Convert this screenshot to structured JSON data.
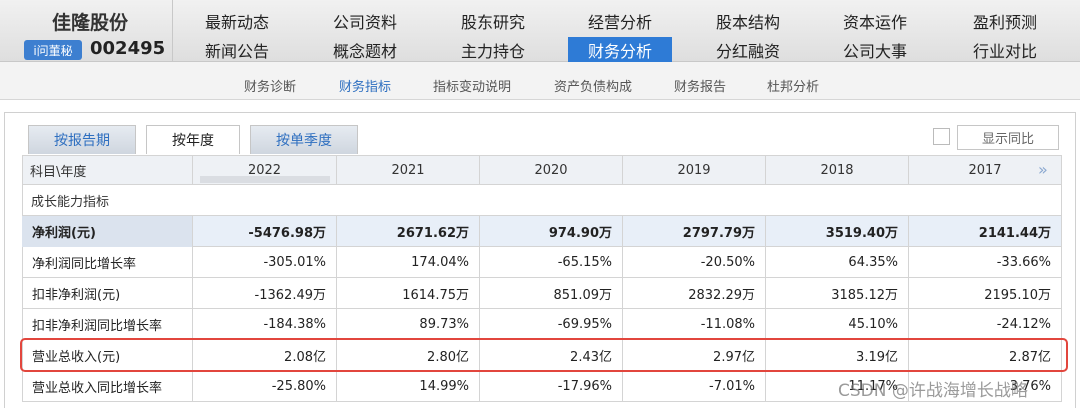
{
  "header": {
    "name": "佳隆股份",
    "badge": "i问董秘",
    "code": "002495"
  },
  "nav": {
    "rows": [
      [
        "最新动态",
        "公司资料",
        "股东研究",
        "经营分析",
        "股本结构",
        "资本运作",
        "盈利预测"
      ],
      [
        "新闻公告",
        "概念题材",
        "主力持仓",
        "财务分析",
        "分红融资",
        "公司大事",
        "行业对比"
      ]
    ],
    "active": [
      1,
      3
    ]
  },
  "subnav": {
    "items": [
      "财务诊断",
      "财务指标",
      "指标变动说明",
      "资产负债构成",
      "财务报告",
      "杜邦分析"
    ],
    "active": 1
  },
  "tabs": {
    "items": [
      "按报告期",
      "按年度",
      "按单季度"
    ],
    "active": 1
  },
  "toggle": {
    "label": "显示同比"
  },
  "table": {
    "columns": [
      "科目\\年度",
      "2022",
      "2021",
      "2020",
      "2019",
      "2018",
      "2017"
    ],
    "section": "成长能力指标",
    "rows": [
      [
        "净利润(元)",
        "-5476.98万",
        "2671.62万",
        "974.90万",
        "2797.79万",
        "3519.40万",
        "2141.44万"
      ],
      [
        "净利润同比增长率",
        "-305.01%",
        "174.04%",
        "-65.15%",
        "-20.50%",
        "64.35%",
        "-33.66%"
      ],
      [
        "扣非净利润(元)",
        "-1362.49万",
        "1614.75万",
        "851.09万",
        "2832.29万",
        "3185.12万",
        "2195.10万"
      ],
      [
        "扣非净利润同比增长率",
        "-184.38%",
        "89.73%",
        "-69.95%",
        "-11.08%",
        "45.10%",
        "-24.12%"
      ],
      [
        "营业总收入(元)",
        "2.08亿",
        "2.80亿",
        "2.43亿",
        "2.97亿",
        "3.19亿",
        "2.87亿"
      ],
      [
        "营业总收入同比增长率",
        "-25.80%",
        "14.99%",
        "-17.96%",
        "-7.01%",
        "11.17%",
        "3.76%"
      ]
    ],
    "bold_rows": [
      0
    ],
    "highlight_row": 4
  },
  "watermark": "CSDN @许战海增长战略"
}
